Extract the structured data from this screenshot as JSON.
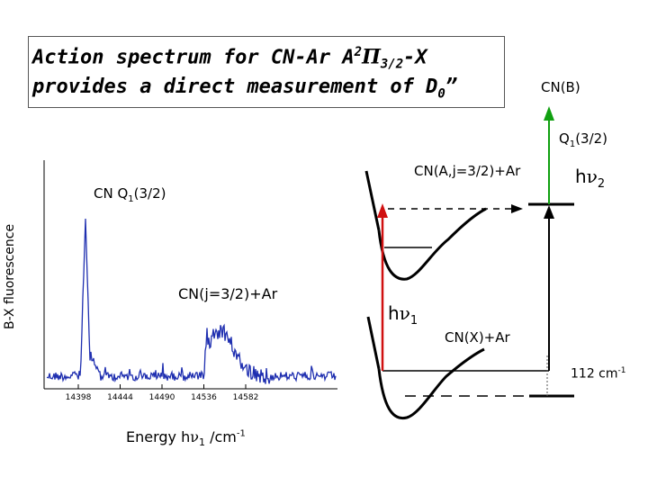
{
  "title": {
    "line1_prefix": "Action spectrum for CN-Ar A",
    "line1_sup": "2",
    "line1_pi": "Π",
    "line1_sub": "3/2",
    "line1_suffix": "-X",
    "line2_prefix": "provides a direct measurement of D",
    "line2_sub": "0",
    "line2_suffix": "”"
  },
  "spectrum": {
    "ylabel": "B-X fluorescence",
    "xlabel_prefix": "Energy h",
    "xlabel_nu": "ν",
    "xlabel_sub": "1",
    "xlabel_unit": " /cm",
    "xlabel_sup": "-1",
    "peak_label_prefix": "CN Q",
    "peak_label_sub": "1",
    "peak_label_suffix": "(3/2)",
    "band_label": "CN(j=3/2)+Ar",
    "ticks": [
      "14398",
      "14444",
      "14490",
      "14536",
      "14582"
    ]
  },
  "levels": {
    "cn_b": "CN(B)",
    "q_prefix": "Q",
    "q_sub": "1",
    "q_suffix": "(3/2)",
    "h": "h",
    "nu": "ν",
    "hv2_sub": "2",
    "hv1_sub": "1",
    "cn_a": "CN(A,j=3/2)+Ar",
    "cn_x": "CN(X)+Ar",
    "gap_value": "112 cm",
    "gap_sup": "-1"
  },
  "colors": {
    "spectrum": "#1f2fb0",
    "hv1_arrow": "#d01010",
    "hv2_arrow": "#10a010",
    "axis": "#000000"
  }
}
